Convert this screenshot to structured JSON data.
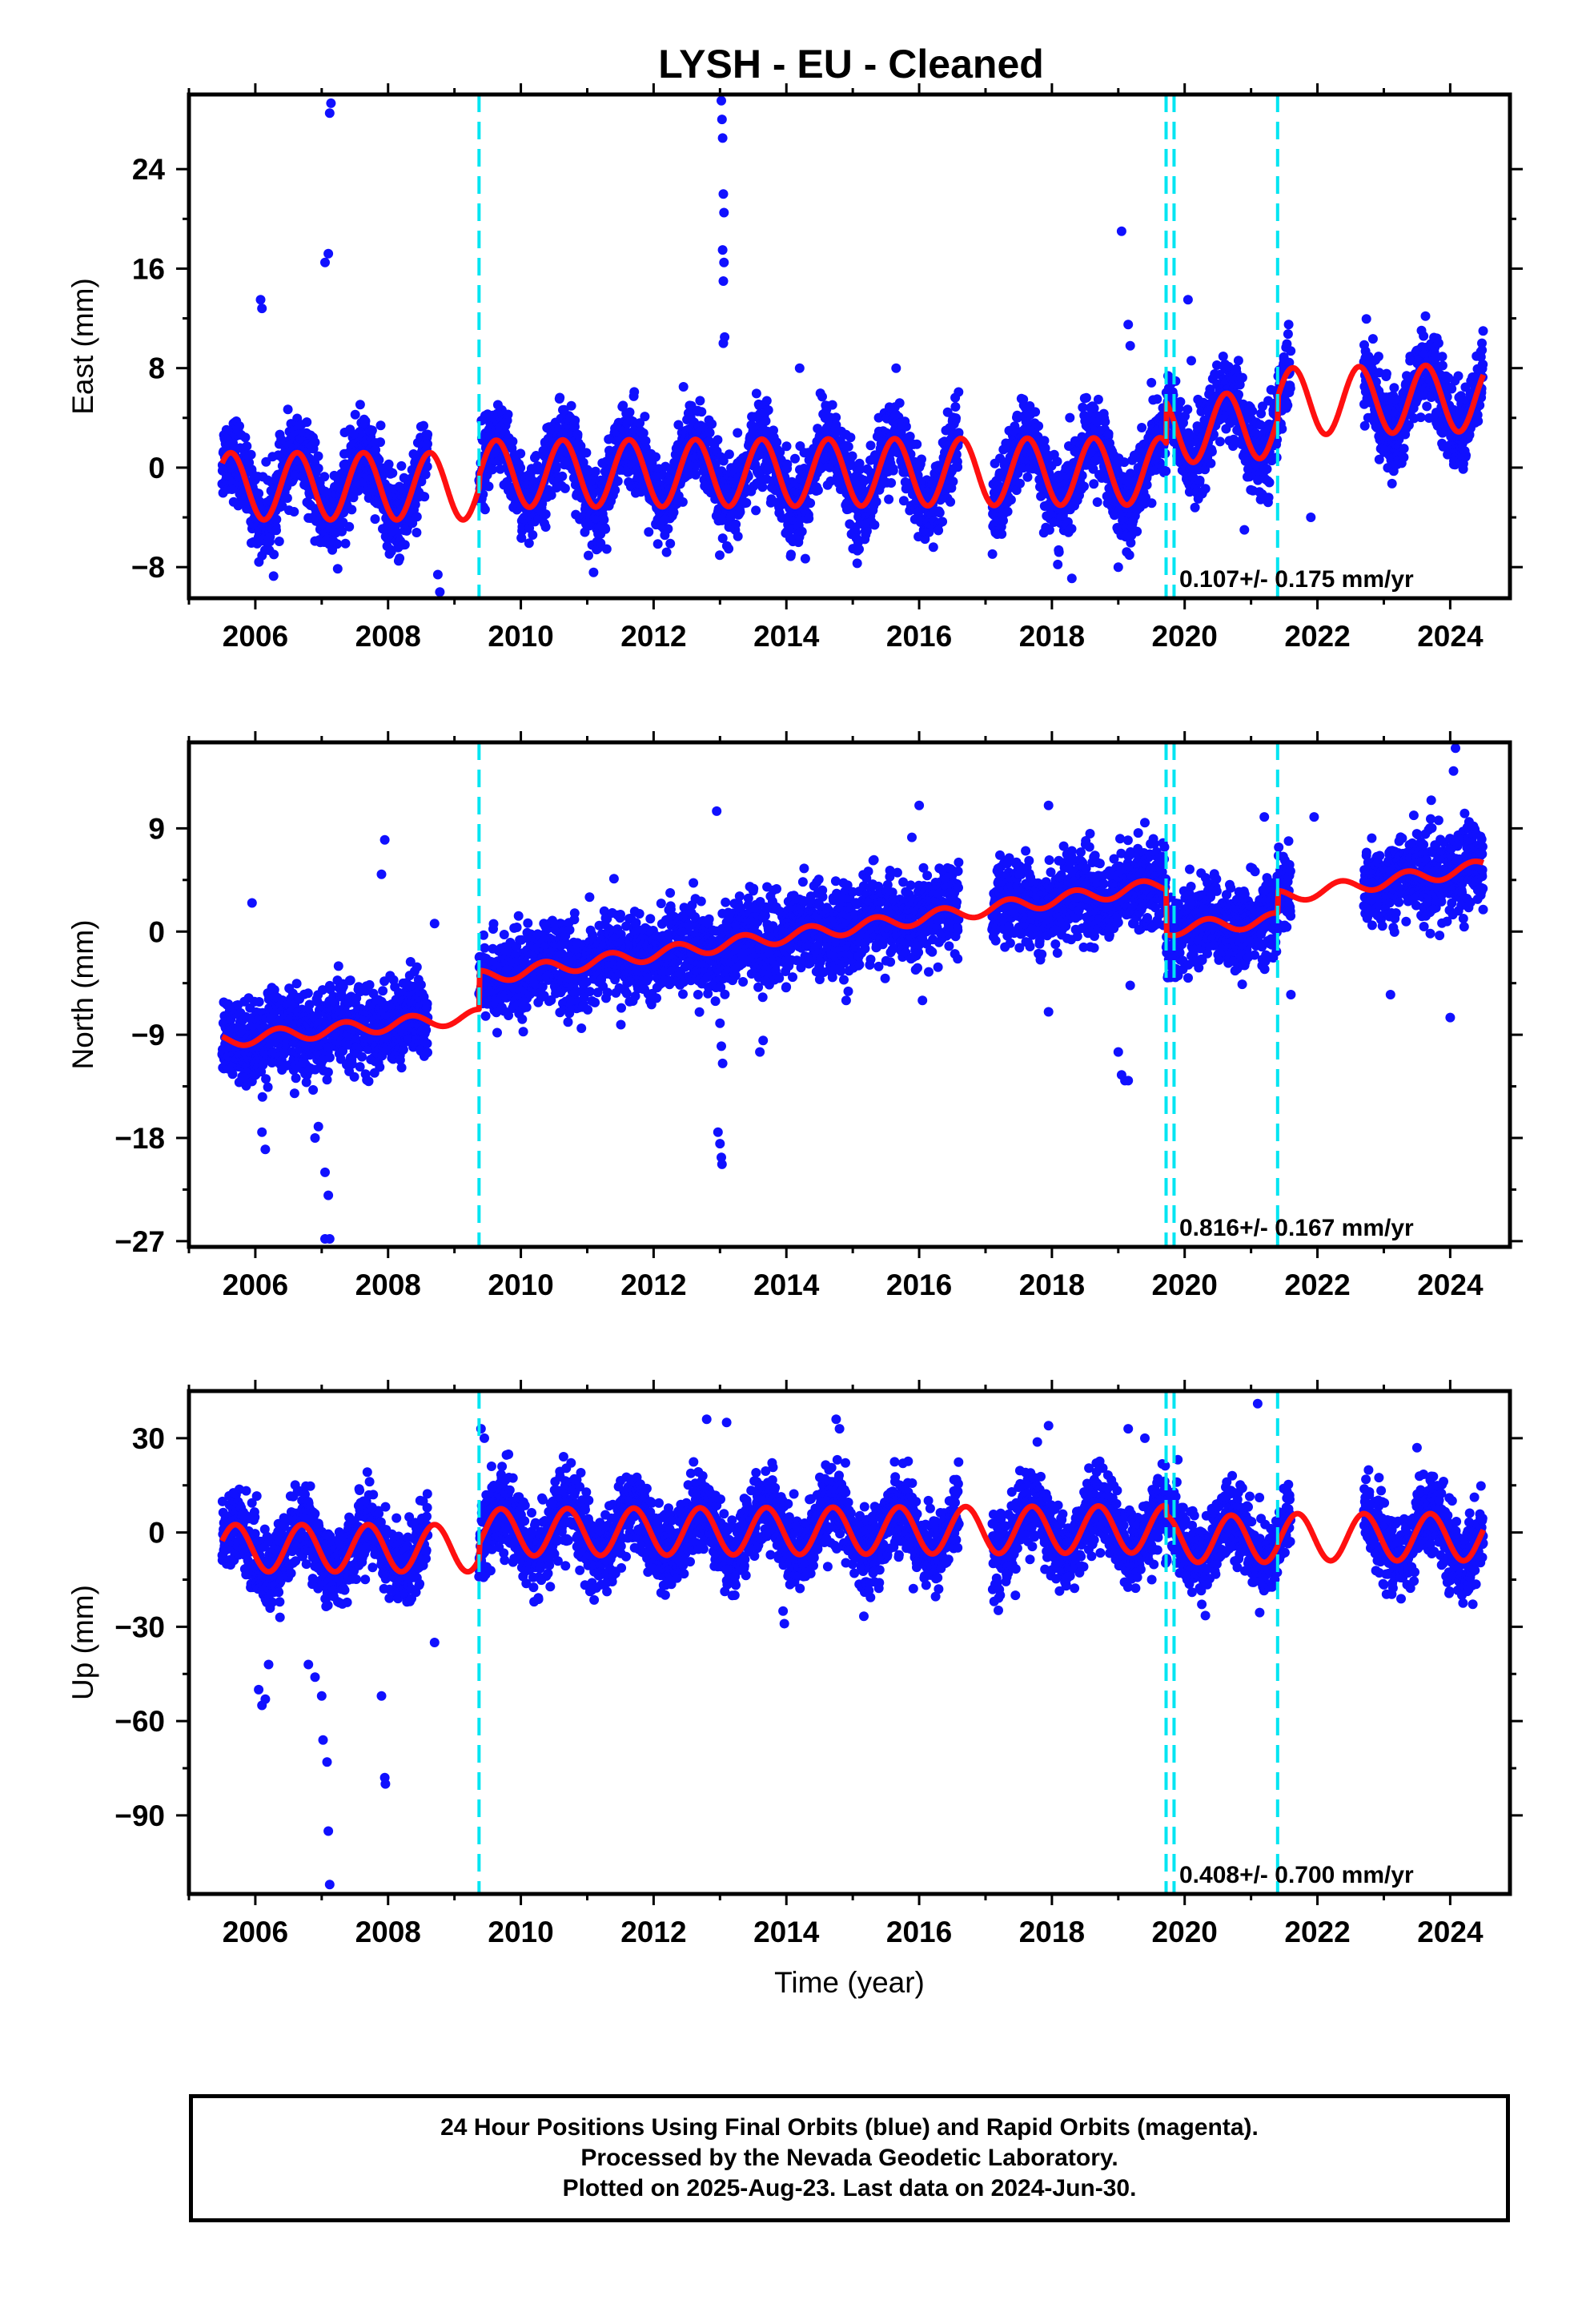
{
  "title": "LYSH  - EU - Cleaned",
  "colors": {
    "data": "#1010ff",
    "model": "#ff1010",
    "break": "#00e5f2",
    "frame": "#000000"
  },
  "footer": {
    "line1": "24 Hour Positions Using Final Orbits (blue) and Rapid Orbits (magenta).",
    "line2": "Processed by the Nevada Geodetic Laboratory.",
    "line3": "Plotted on 2025-Aug-23. Last data on 2024-Jun-30."
  },
  "chart_data": [
    {
      "type": "scatter",
      "ylabel": "East (mm)",
      "xlabel": "",
      "xlim": [
        2005.0,
        2024.9
      ],
      "ylim": [
        -10.5,
        30.0
      ],
      "x_ticks": [
        "2006",
        "2008",
        "2010",
        "2012",
        "2014",
        "2016",
        "2018",
        "2020",
        "2022",
        "2024"
      ],
      "y_ticks": [
        -8,
        0,
        8,
        16,
        24
      ],
      "rate_label": "0.107+/- 0.175 mm/yr",
      "breaks": [
        2009.37,
        2019.72,
        2019.84,
        2021.4
      ],
      "model": {
        "segments": [
          {
            "start": 2005.5,
            "end": 2009.37,
            "offset": -1.5,
            "trend": 0.0,
            "amp": 2.7
          },
          {
            "start": 2009.37,
            "end": 2019.72,
            "offset": -0.5,
            "trend": 0.02,
            "amp": 2.7
          },
          {
            "start": 2019.72,
            "end": 2021.4,
            "offset": 3.0,
            "trend": 0.3,
            "amp": 2.7
          },
          {
            "start": 2021.4,
            "end": 2024.5,
            "offset": 5.3,
            "trend": 0.1,
            "amp": 2.7
          }
        ],
        "phase": 0.38
      },
      "data_spans": [
        [
          2005.5,
          2008.6
        ],
        [
          2009.37,
          2016.6
        ],
        [
          2017.1,
          2021.6
        ],
        [
          2022.7,
          2024.5
        ]
      ],
      "scatter_sigma": 1.6,
      "outliers": [
        [
          2006.08,
          13.5
        ],
        [
          2006.1,
          12.8
        ],
        [
          2007.05,
          16.5
        ],
        [
          2007.1,
          17.2
        ],
        [
          2007.12,
          28.5
        ],
        [
          2007.14,
          29.3
        ],
        [
          2008.75,
          -8.6
        ],
        [
          2008.78,
          -10.0
        ],
        [
          2012.45,
          6.5
        ],
        [
          2013.02,
          29.5
        ],
        [
          2013.03,
          28.0
        ],
        [
          2013.04,
          26.5
        ],
        [
          2013.05,
          22.0
        ],
        [
          2013.06,
          20.5
        ],
        [
          2013.04,
          17.5
        ],
        [
          2013.06,
          16.5
        ],
        [
          2013.05,
          15.0
        ],
        [
          2013.07,
          10.5
        ],
        [
          2013.05,
          10.0
        ],
        [
          2014.2,
          8.0
        ],
        [
          2018.3,
          -8.9
        ],
        [
          2019.05,
          19.0
        ],
        [
          2019.15,
          11.5
        ],
        [
          2019.18,
          9.8
        ],
        [
          2020.05,
          13.5
        ],
        [
          2020.1,
          8.6
        ],
        [
          2019.0,
          -8.0
        ],
        [
          2021.9,
          -4.0
        ],
        [
          2020.9,
          -5.0
        ]
      ]
    },
    {
      "type": "scatter",
      "ylabel": "North (mm)",
      "xlabel": "",
      "xlim": [
        2005.0,
        2024.9
      ],
      "ylim": [
        -27.5,
        16.5
      ],
      "x_ticks": [
        "2006",
        "2008",
        "2010",
        "2012",
        "2014",
        "2016",
        "2018",
        "2020",
        "2022",
        "2024"
      ],
      "y_ticks": [
        -27,
        -18,
        -9,
        0,
        9
      ],
      "rate_label": "0.816+/- 0.167 mm/yr",
      "breaks": [
        2009.37,
        2019.72,
        2019.84,
        2021.4
      ],
      "model": {
        "segments": [
          {
            "start": 2005.5,
            "end": 2009.37,
            "offset": -9.5,
            "trend": 0.55,
            "amp": 0.6
          },
          {
            "start": 2009.37,
            "end": 2019.72,
            "offset": -4.0,
            "trend": 0.78,
            "amp": 0.6
          },
          {
            "start": 2019.72,
            "end": 2021.4,
            "offset": 0.2,
            "trend": 0.5,
            "amp": 0.6
          },
          {
            "start": 2021.4,
            "end": 2024.5,
            "offset": 3.0,
            "trend": 0.85,
            "amp": 0.6
          }
        ],
        "phase": 0.1
      },
      "data_spans": [
        [
          2005.5,
          2008.6
        ],
        [
          2009.37,
          2016.6
        ],
        [
          2017.1,
          2021.6
        ],
        [
          2022.7,
          2024.5
        ]
      ],
      "scatter_sigma": 1.8,
      "outliers": [
        [
          2005.95,
          2.5
        ],
        [
          2006.1,
          -17.5
        ],
        [
          2006.15,
          -19.0
        ],
        [
          2006.9,
          -18.0
        ],
        [
          2006.95,
          -17.0
        ],
        [
          2007.05,
          -21.0
        ],
        [
          2007.1,
          -23.0
        ],
        [
          2007.05,
          -26.8
        ],
        [
          2007.12,
          -26.8
        ],
        [
          2007.9,
          5.0
        ],
        [
          2007.95,
          8.0
        ],
        [
          2008.7,
          0.7
        ],
        [
          2012.95,
          10.5
        ],
        [
          2013.0,
          -8.0
        ],
        [
          2013.02,
          -10.0
        ],
        [
          2013.04,
          -11.5
        ],
        [
          2012.97,
          -17.5
        ],
        [
          2013.0,
          -18.5
        ],
        [
          2013.02,
          -19.7
        ],
        [
          2013.03,
          -20.3
        ],
        [
          2013.6,
          -10.5
        ],
        [
          2013.65,
          -9.5
        ],
        [
          2014.9,
          -6.0
        ],
        [
          2016.0,
          11.0
        ],
        [
          2016.05,
          -6.0
        ],
        [
          2017.95,
          11.0
        ],
        [
          2017.95,
          -7.0
        ],
        [
          2019.0,
          -10.5
        ],
        [
          2019.05,
          -12.5
        ],
        [
          2019.1,
          -13.0
        ],
        [
          2019.15,
          -13.0
        ],
        [
          2019.4,
          9.5
        ],
        [
          2021.6,
          -5.5
        ],
        [
          2021.95,
          10.0
        ],
        [
          2023.1,
          -5.5
        ],
        [
          2024.0,
          -7.5
        ],
        [
          2024.05,
          14.0
        ],
        [
          2024.08,
          16.0
        ],
        [
          2021.2,
          10.0
        ]
      ]
    },
    {
      "type": "scatter",
      "ylabel": "Up (mm)",
      "xlabel": "Time (year)",
      "xlim": [
        2005.0,
        2024.9
      ],
      "ylim": [
        -115.0,
        45.0
      ],
      "x_ticks": [
        "2006",
        "2008",
        "2010",
        "2012",
        "2014",
        "2016",
        "2018",
        "2020",
        "2022",
        "2024"
      ],
      "y_ticks": [
        -90,
        -60,
        -30,
        0,
        30
      ],
      "rate_label": "0.408+/- 0.700 mm/yr",
      "breaks": [
        2009.37,
        2019.72,
        2019.84,
        2021.4
      ],
      "model": {
        "segments": [
          {
            "start": 2005.5,
            "end": 2009.37,
            "offset": -5.0,
            "trend": 0.0,
            "amp": 7.5
          },
          {
            "start": 2009.37,
            "end": 2019.72,
            "offset": 0.0,
            "trend": 0.1,
            "amp": 7.5
          },
          {
            "start": 2019.72,
            "end": 2021.4,
            "offset": -2.0,
            "trend": 0.0,
            "amp": 7.5
          },
          {
            "start": 2021.4,
            "end": 2024.5,
            "offset": -1.5,
            "trend": 0.0,
            "amp": 7.5
          }
        ],
        "phase": 0.45
      },
      "data_spans": [
        [
          2005.5,
          2008.6
        ],
        [
          2009.37,
          2016.6
        ],
        [
          2017.1,
          2021.6
        ],
        [
          2022.7,
          2024.5
        ]
      ],
      "scatter_sigma": 6.0,
      "outliers": [
        [
          2006.05,
          -50.0
        ],
        [
          2006.1,
          -55.0
        ],
        [
          2006.15,
          -53.0
        ],
        [
          2006.2,
          -42.0
        ],
        [
          2006.8,
          -42.0
        ],
        [
          2006.9,
          -46.0
        ],
        [
          2007.0,
          -52.0
        ],
        [
          2007.02,
          -66.0
        ],
        [
          2007.08,
          -73.0
        ],
        [
          2007.1,
          -95.0
        ],
        [
          2007.12,
          -112.0
        ],
        [
          2007.9,
          -52.0
        ],
        [
          2007.95,
          -78.0
        ],
        [
          2007.96,
          -80.0
        ],
        [
          2008.7,
          -35.0
        ],
        [
          2009.4,
          33.0
        ],
        [
          2009.45,
          30.0
        ],
        [
          2012.8,
          36.0
        ],
        [
          2013.1,
          35.0
        ],
        [
          2013.95,
          -25.0
        ],
        [
          2013.97,
          -29.0
        ],
        [
          2014.75,
          36.0
        ],
        [
          2014.8,
          33.0
        ],
        [
          2017.45,
          -20.0
        ],
        [
          2017.95,
          34.0
        ],
        [
          2019.15,
          33.0
        ],
        [
          2019.4,
          30.0
        ],
        [
          2021.1,
          41.0
        ],
        [
          2023.5,
          27.0
        ]
      ]
    }
  ]
}
